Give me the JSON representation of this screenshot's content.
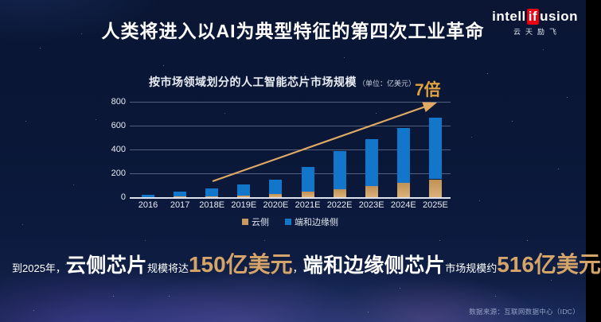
{
  "slide": {
    "title": "人类将进入以AI为典型特征的第四次工业革命",
    "source_note": "数据来源：互联网数据中心（IDC）"
  },
  "logo": {
    "part1": "intell",
    "part2": "if",
    "part3": "usion",
    "subtitle": "云天励飞",
    "accent_color": "#E60012"
  },
  "chart_data": {
    "type": "bar",
    "stacked": true,
    "title": "按市场领域划分的人工智能芯片市场规模",
    "unit_label": "（单位：亿美元）",
    "annotation": "7倍",
    "categories": [
      "2016",
      "2017",
      "2018E",
      "2019E",
      "2020E",
      "2021E",
      "2022E",
      "2023E",
      "2024E",
      "2025E"
    ],
    "series": [
      {
        "name": "云侧",
        "color": "#C89A5F",
        "values": [
          2,
          5,
          9,
          15,
          25,
          45,
          70,
          92,
          118,
          150
        ]
      },
      {
        "name": "端和边缘侧",
        "color": "#1277CB",
        "values": [
          20,
          42,
          63,
          93,
          120,
          210,
          315,
          396,
          460,
          516
        ]
      }
    ],
    "totals": [
      22,
      47,
      72,
      108,
      145,
      255,
      385,
      488,
      578,
      666
    ],
    "ylim": [
      0,
      800
    ],
    "yticks": [
      0,
      200,
      400,
      600,
      800
    ],
    "grid": true,
    "legend_position": "bottom",
    "arrow_color": "#DFA963"
  },
  "statement": {
    "segments": [
      {
        "text": "到2025年，",
        "style": "small"
      },
      {
        "text": "云侧芯片",
        "style": "big"
      },
      {
        "text": "规模将达",
        "style": "small"
      },
      {
        "text": "150亿美元",
        "style": "number"
      },
      {
        "text": "，",
        "style": "small"
      },
      {
        "text": "端和边缘侧芯片",
        "style": "big"
      },
      {
        "text": "市场规模约",
        "style": "small"
      },
      {
        "text": "516亿美元",
        "style": "number"
      }
    ]
  },
  "colors": {
    "background_navy": "#0a1634",
    "bar_cloud": "#C89A5F",
    "bar_edge": "#1277CB",
    "gold_annotation": "#E0A23F",
    "number_text": "#D5A469",
    "logo_red": "#E60012"
  }
}
